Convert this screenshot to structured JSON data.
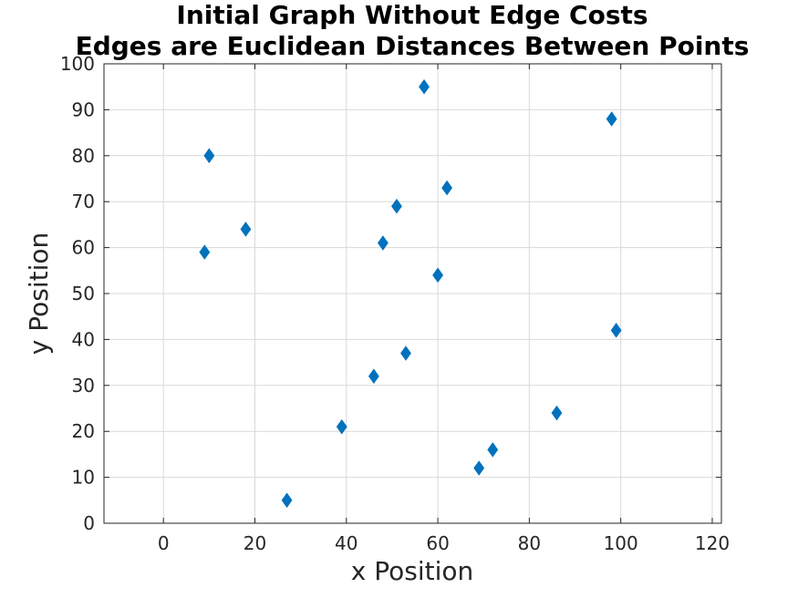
{
  "chart_data": {
    "type": "scatter",
    "title_lines": [
      "Initial Graph Without Edge Costs",
      "Edges are Euclidean Distances Between Points"
    ],
    "xlabel": "x Position",
    "ylabel": "y Position",
    "xlim": [
      -13,
      122
    ],
    "ylim": [
      0,
      100
    ],
    "xticks": [
      0,
      20,
      40,
      60,
      80,
      100,
      120
    ],
    "yticks": [
      0,
      10,
      20,
      30,
      40,
      50,
      60,
      70,
      80,
      90,
      100
    ],
    "grid": true,
    "marker": "diamond",
    "marker_color": "#0072BD",
    "points": [
      {
        "x": 10,
        "y": 80
      },
      {
        "x": 9,
        "y": 59
      },
      {
        "x": 18,
        "y": 64
      },
      {
        "x": 27,
        "y": 5
      },
      {
        "x": 39,
        "y": 21
      },
      {
        "x": 46,
        "y": 32
      },
      {
        "x": 48,
        "y": 61
      },
      {
        "x": 51,
        "y": 69
      },
      {
        "x": 53,
        "y": 37
      },
      {
        "x": 57,
        "y": 95
      },
      {
        "x": 60,
        "y": 54
      },
      {
        "x": 62,
        "y": 73
      },
      {
        "x": 69,
        "y": 12
      },
      {
        "x": 72,
        "y": 16
      },
      {
        "x": 86,
        "y": 24
      },
      {
        "x": 98,
        "y": 88
      },
      {
        "x": 99,
        "y": 42
      }
    ]
  }
}
